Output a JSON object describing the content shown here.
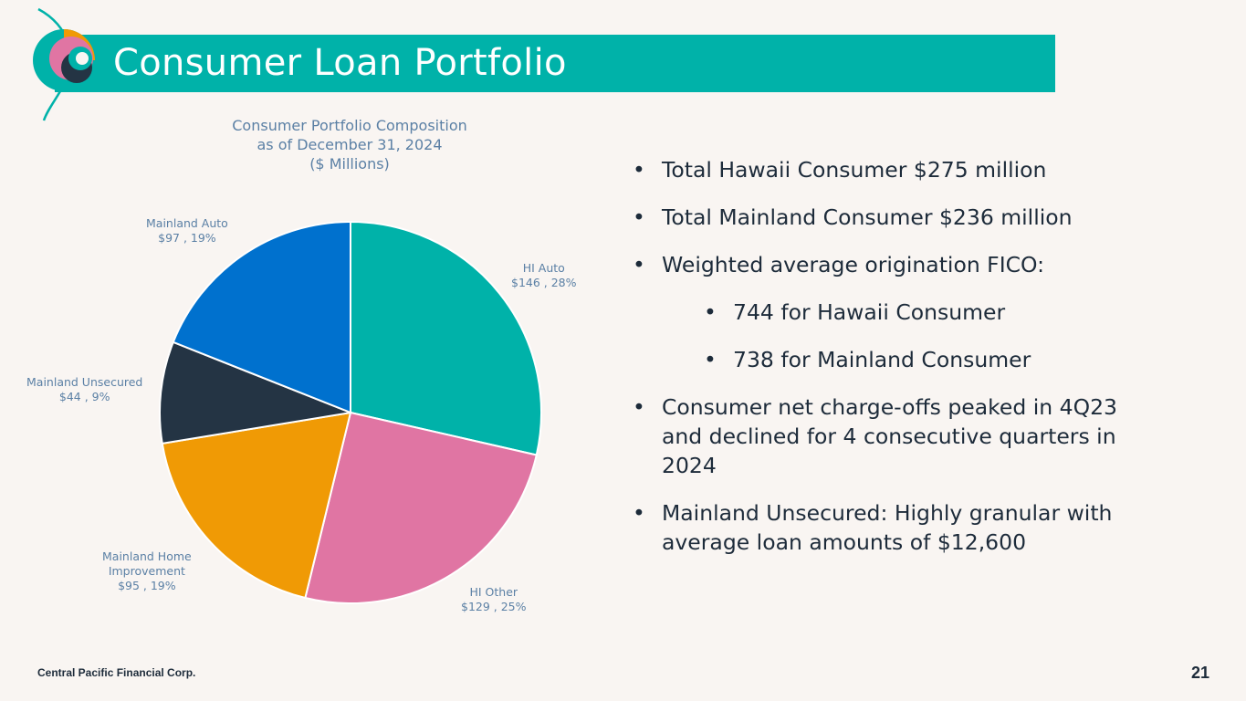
{
  "header": {
    "title": "Consumer Loan Portfolio"
  },
  "chart_data": {
    "type": "pie",
    "title_lines": [
      "Consumer Portfolio Composition",
      "as of December 31, 2024",
      "($ Millions)"
    ],
    "slices": [
      {
        "name": "HI Auto",
        "value": 146,
        "percent": 28,
        "value_label": "$146 , 28%",
        "color": "#00b2a9"
      },
      {
        "name": "HI Other",
        "value": 129,
        "percent": 25,
        "value_label": "$129 , 25%",
        "color": "#e075a3"
      },
      {
        "name": "Mainland Home Improvement",
        "name_lines": [
          "Mainland Home",
          "Improvement"
        ],
        "value": 95,
        "percent": 19,
        "value_label": "$95 , 19%",
        "color": "#f09a05"
      },
      {
        "name": "Mainland Unsecured",
        "value": 44,
        "percent": 9,
        "value_label": "$44 , 9%",
        "color": "#243444"
      },
      {
        "name": "Mainland Auto",
        "value": 97,
        "percent": 19,
        "value_label": "$97 , 19%",
        "color": "#0071ce"
      }
    ]
  },
  "bullets": [
    {
      "text": "Total Hawaii Consumer $275 million"
    },
    {
      "text": "Total Mainland Consumer $236 million"
    },
    {
      "text": "Weighted average origination FICO:"
    },
    {
      "text": "744 for Hawaii Consumer"
    },
    {
      "text": "738 for Mainland Consumer"
    },
    {
      "text": "Consumer net charge-offs peaked in 4Q23 and declined for 4 consecutive quarters in 2024"
    },
    {
      "text": "Mainland Unsecured: Highly granular with average loan amounts of $12,600"
    }
  ],
  "footer": {
    "company": "Central Pacific Financial Corp.",
    "page_number": "21"
  },
  "colors": {
    "accent": "#00b2a9",
    "text": "#1d2b3a",
    "label": "#5b80a5",
    "background": "#f9f5f2"
  }
}
